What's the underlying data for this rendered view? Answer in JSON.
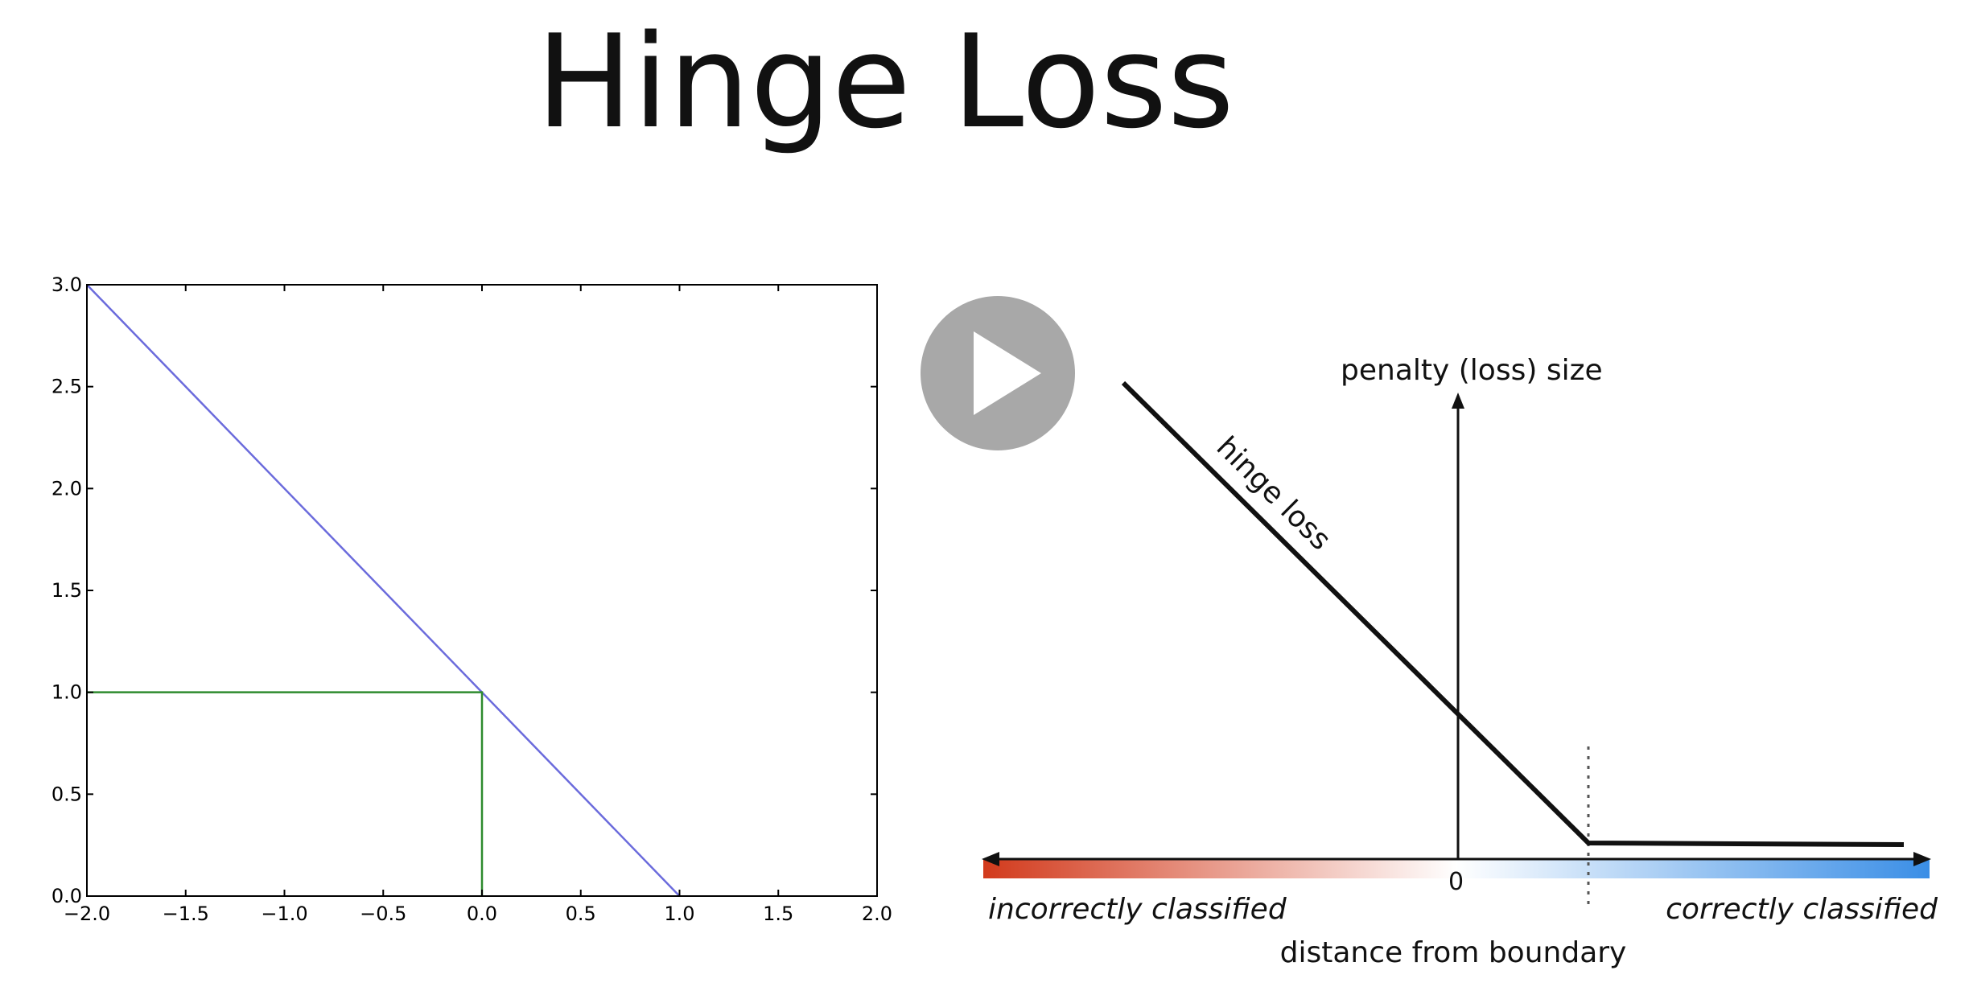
{
  "slide": {
    "title": "Hinge Loss"
  },
  "chart_data": {
    "type": "line",
    "xlim": [
      -2.0,
      2.0
    ],
    "ylim": [
      0.0,
      3.0
    ],
    "x_ticks": [
      "−2.0",
      "−1.5",
      "−1.0",
      "−0.5",
      "0.0",
      "0.5",
      "1.0",
      "1.5",
      "2.0"
    ],
    "y_ticks": [
      "0.0",
      "0.5",
      "1.0",
      "1.5",
      "2.0",
      "2.5",
      "3.0"
    ],
    "grid": false,
    "series": [
      {
        "color": "#6b6bdc",
        "x": [
          -2.0,
          1.0
        ],
        "y": [
          3.0,
          0.0
        ]
      },
      {
        "color": "#2e8b2e",
        "x": [
          -2.0,
          0.0,
          0.0
        ],
        "y": [
          1.0,
          1.0,
          0.0
        ]
      }
    ]
  },
  "diagram": {
    "y_axis_label": "penalty (loss) size",
    "curve_label": "hinge loss",
    "origin_label": "0",
    "left_label": "incorrectly classified",
    "right_label": "correctly classified",
    "x_axis_label": "distance from boundary",
    "colors": {
      "negative": "#d23a1c",
      "positive": "#3a8ee6",
      "curve": "#111111"
    }
  },
  "video_overlay": {
    "icon": "play-icon",
    "color": "#a8a8a8"
  }
}
